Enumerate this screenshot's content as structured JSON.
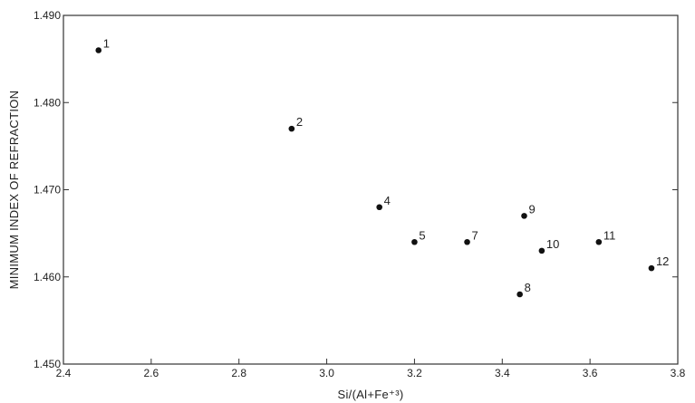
{
  "chart_data": {
    "type": "scatter",
    "xlabel": "Si/(Al+Fe⁺³)",
    "ylabel": "MINIMUM INDEX OF REFRACTION",
    "xlim": [
      2.4,
      3.8
    ],
    "ylim": [
      1.45,
      1.49
    ],
    "xticks": [
      2.4,
      2.6,
      2.8,
      3.0,
      3.2,
      3.4,
      3.6,
      3.8
    ],
    "xtick_labels": [
      "2.4",
      "2.6",
      "2.8",
      "3.0",
      "3.2",
      "3.4",
      "3.6",
      "3.8"
    ],
    "yticks": [
      1.45,
      1.46,
      1.47,
      1.48,
      1.49
    ],
    "ytick_labels": [
      "1.450",
      "1.460",
      "1.470",
      "1.480",
      "1.490"
    ],
    "grid": false,
    "points": [
      {
        "label": "1",
        "x": 2.48,
        "y": 1.486
      },
      {
        "label": "2",
        "x": 2.92,
        "y": 1.477
      },
      {
        "label": "4",
        "x": 3.12,
        "y": 1.468
      },
      {
        "label": "5",
        "x": 3.2,
        "y": 1.464
      },
      {
        "label": "7",
        "x": 3.32,
        "y": 1.464
      },
      {
        "label": "8",
        "x": 3.44,
        "y": 1.458
      },
      {
        "label": "9",
        "x": 3.45,
        "y": 1.467
      },
      {
        "label": "10",
        "x": 3.49,
        "y": 1.463
      },
      {
        "label": "11",
        "x": 3.62,
        "y": 1.464
      },
      {
        "label": "12",
        "x": 3.74,
        "y": 1.461
      }
    ]
  }
}
